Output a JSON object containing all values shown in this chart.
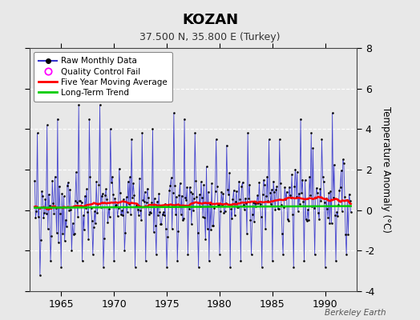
{
  "title": "KOZAN",
  "subtitle": "37.500 N, 35.800 E (Turkey)",
  "ylabel": "Temperature Anomaly (°C)",
  "watermark": "Berkeley Earth",
  "ylim": [
    -4,
    8
  ],
  "yticks": [
    -4,
    -2,
    0,
    2,
    4,
    6,
    8
  ],
  "xticks": [
    1965,
    1970,
    1975,
    1980,
    1985,
    1990
  ],
  "xlim": [
    1962.0,
    1993.0
  ],
  "background_color": "#e8e8e8",
  "plot_bg_color": "#e8e8e8",
  "raw_color": "#3333cc",
  "marker_color": "#000000",
  "moving_avg_color": "#ff0000",
  "trend_color": "#00cc00",
  "qc_color": "#ff00ff",
  "grid_color": "#ffffff",
  "title_fontsize": 13,
  "subtitle_fontsize": 9,
  "tick_fontsize": 9,
  "ylabel_fontsize": 8.5
}
